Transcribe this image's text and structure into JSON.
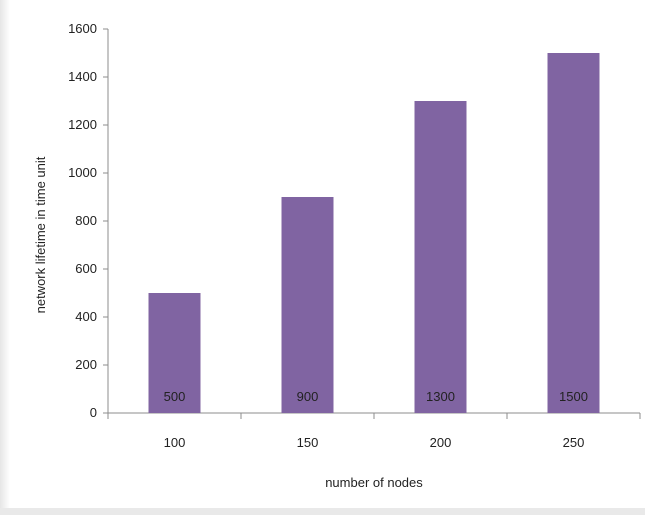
{
  "chart_data": {
    "type": "bar",
    "categories": [
      "100",
      "150",
      "200",
      "250"
    ],
    "values": [
      500,
      900,
      1300,
      1500
    ],
    "data_labels": [
      "500",
      "900",
      "1300",
      "1500"
    ],
    "title": "",
    "xlabel": "number of nodes",
    "ylabel": "network lifetime in time unit",
    "ylim": [
      0,
      1600
    ],
    "yticks": [
      "0",
      "200",
      "400",
      "600",
      "800",
      "1000",
      "1200",
      "1400",
      "1600"
    ],
    "grid": false,
    "legend": "none",
    "bar_color": "#8064a2"
  }
}
